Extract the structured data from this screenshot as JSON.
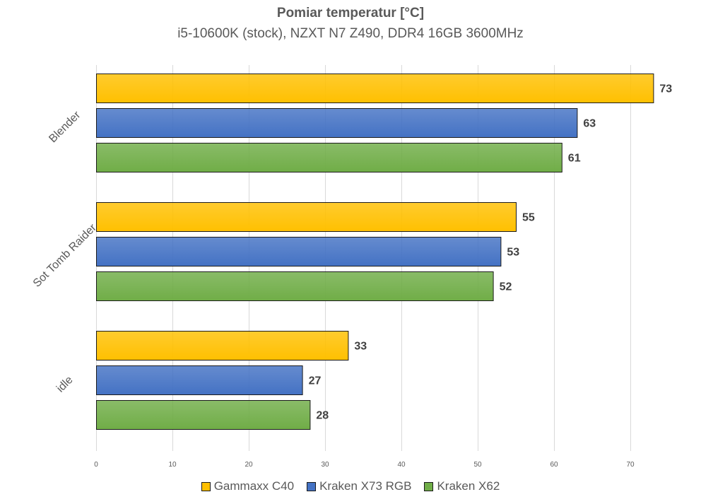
{
  "chart_data": {
    "type": "bar",
    "orientation": "horizontal",
    "title": "Pomiar temperatur [°C]",
    "subtitle": "i5-10600K (stock), NZXT N7 Z490, DDR4 16GB 3600MHz",
    "categories": [
      "Blender",
      "Sot Tomb Raider",
      "idle"
    ],
    "series": [
      {
        "name": "Gammaxx C40",
        "color": "#ffc000",
        "values": [
          73,
          55,
          33
        ]
      },
      {
        "name": "Kraken X73 RGB",
        "color": "#4472c4",
        "values": [
          63,
          53,
          27
        ]
      },
      {
        "name": "Kraken X62",
        "color": "#70ad47",
        "values": [
          61,
          52,
          28
        ]
      }
    ],
    "xlim": [
      0,
      70
    ],
    "xticks": [
      0,
      10,
      20,
      30,
      40,
      50,
      60,
      70
    ],
    "grid": true,
    "legend_position": "bottom"
  }
}
